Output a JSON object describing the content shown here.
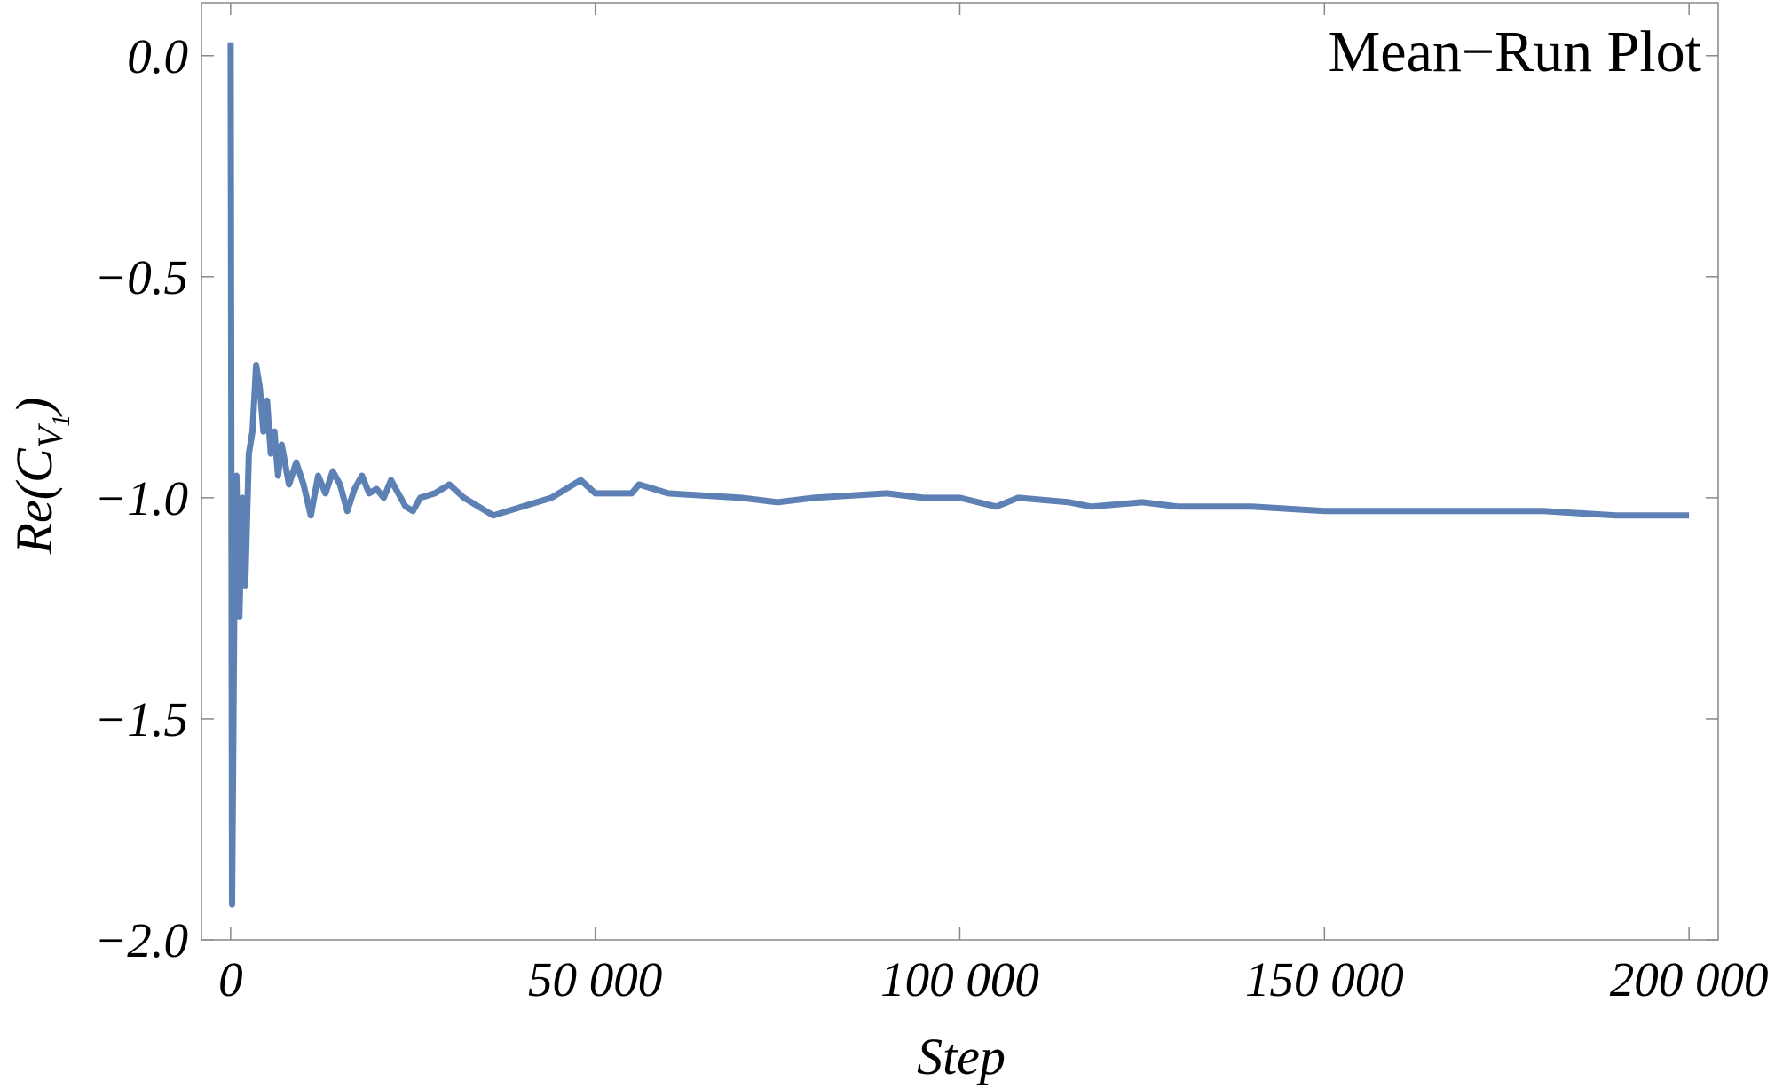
{
  "chart_data": {
    "type": "line",
    "title": "Mean−Run Plot",
    "xlabel": "Step",
    "ylabel": [
      "Re(C",
      "V",
      "1",
      ")"
    ],
    "xlim": [
      -4000,
      204000
    ],
    "ylim": [
      -2.0,
      0.12
    ],
    "xticks": [
      0,
      {
        "value": 50000,
        "label": "50 000"
      },
      {
        "value": 100000,
        "label": "100 000"
      },
      {
        "value": 150000,
        "label": "150 000"
      },
      {
        "value": 200000,
        "label": "200 000"
      }
    ],
    "yticks": [
      {
        "value": -2.0,
        "label": "−2.0"
      },
      {
        "value": -1.5,
        "label": "−1.5"
      },
      {
        "value": -1.0,
        "label": "−1.0"
      },
      {
        "value": -0.5,
        "label": "−0.5"
      },
      {
        "value": 0,
        "label": "0.0"
      }
    ],
    "series": [
      {
        "color": "#5e81b5",
        "x": [
          0,
          200,
          500,
          800,
          1200,
          1600,
          2000,
          2500,
          3000,
          3500,
          4000,
          4500,
          5000,
          5500,
          6000,
          6500,
          7000,
          8000,
          9000,
          10000,
          11000,
          12000,
          13000,
          14000,
          15000,
          16000,
          17000,
          18000,
          19000,
          20000,
          21000,
          22000,
          23000,
          24000,
          25000,
          26000,
          28000,
          30000,
          32000,
          34000,
          36000,
          38000,
          40000,
          42000,
          44000,
          46000,
          48000,
          50000,
          55000,
          56000,
          60000,
          70000,
          75000,
          80000,
          90000,
          95000,
          100000,
          105000,
          108000,
          115000,
          118000,
          125000,
          130000,
          140000,
          150000,
          160000,
          170000,
          180000,
          190000,
          200000
        ],
        "values": [
          0.03,
          -1.92,
          -1.25,
          -0.95,
          -1.27,
          -1.0,
          -1.2,
          -0.9,
          -0.85,
          -0.7,
          -0.75,
          -0.85,
          -0.78,
          -0.9,
          -0.85,
          -0.95,
          -0.88,
          -0.97,
          -0.92,
          -0.97,
          -1.04,
          -0.95,
          -0.99,
          -0.94,
          -0.97,
          -1.03,
          -0.98,
          -0.95,
          -0.99,
          -0.98,
          -1.0,
          -0.96,
          -0.99,
          -1.02,
          -1.03,
          -1.0,
          -0.99,
          -0.97,
          -1.0,
          -1.02,
          -1.04,
          -1.03,
          -1.02,
          -1.01,
          -1.0,
          -0.98,
          -0.96,
          -0.99,
          -0.99,
          -0.97,
          -0.99,
          -1.0,
          -1.01,
          -1.0,
          -0.99,
          -1.0,
          -1.0,
          -1.02,
          -1.0,
          -1.01,
          -1.02,
          -1.01,
          -1.02,
          -1.02,
          -1.03,
          -1.03,
          -1.03,
          -1.03,
          -1.04,
          -1.04
        ]
      }
    ]
  }
}
